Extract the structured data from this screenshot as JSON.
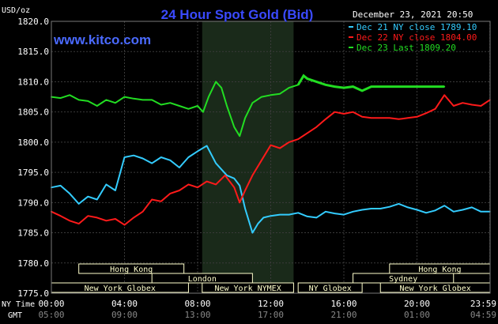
{
  "header": {
    "title": "24 Hour Spot Gold (Bid)",
    "date_time": "December 23, 2021 20:50",
    "unit_label": "USD/oz",
    "website": "www.kitco.com"
  },
  "colors": {
    "background": "#000000",
    "plot_background": "#000000",
    "session_shade": "#1a2a1a",
    "grid": "#3a3a3a",
    "axis_text": "#ffffff",
    "title": "#3a4aff",
    "website": "#4a6aff",
    "dec21": "#33ccff",
    "dec22": "#ff1a1a",
    "dec23": "#22dd22",
    "session_box_fill": "#000000",
    "session_box_border": "#ffffcc",
    "session_text": "#ffffcc"
  },
  "legend": [
    {
      "key": "dec21",
      "label": "Dec 21 NY close 1789.10"
    },
    {
      "key": "dec22",
      "label": "Dec 22 NY close 1804.00"
    },
    {
      "key": "dec23",
      "label": "Dec 23 Last 1809.20"
    }
  ],
  "axis_labels": {
    "ny_time": "NY Time",
    "gmt": "GMT"
  },
  "sessions": {
    "row1": [
      {
        "label": "Hong Kong",
        "start": 1.5,
        "end": 7.25
      },
      {
        "label": "Hong Kong",
        "start": 18.5,
        "end": 24
      }
    ],
    "row2": [
      {
        "label": "London",
        "start": 5.5,
        "end": 11.0
      },
      {
        "label": "Sydney",
        "start": 16.5,
        "end": 22.0
      }
    ],
    "row3": [
      {
        "label": "New York Globex",
        "start": 0,
        "end": 7.5
      },
      {
        "label": "New York NYMEX",
        "start": 8.25,
        "end": 13.25
      },
      {
        "label": "NY Globex",
        "start": 13.5,
        "end": 17.0
      },
      {
        "label": "New York Globex",
        "start": 18.0,
        "end": 24
      }
    ]
  },
  "chart_data": {
    "type": "line",
    "title": "24 Hour Spot Gold (Bid)",
    "ylabel": "USD/oz",
    "xlim": [
      0,
      24
    ],
    "ylim": [
      1775,
      1820
    ],
    "yticks": [
      1775.0,
      1780.0,
      1785.0,
      1790.0,
      1795.0,
      1800.0,
      1805.0,
      1810.0,
      1815.0,
      1820.0
    ],
    "xticks_ny": [
      "00:00",
      "04:00",
      "08:00",
      "12:00",
      "16:00",
      "20:00",
      "23:59"
    ],
    "xticks_gmt": [
      "05:00",
      "09:00",
      "13:00",
      "17:00",
      "21:00",
      "01:00",
      "04:59"
    ],
    "shaded_region": [
      8.25,
      13.25
    ],
    "grid": true,
    "legend_position": "top-right",
    "series": [
      {
        "name": "Dec 21 NY close 1789.10",
        "key": "dec21",
        "x": [
          0,
          0.5,
          1.0,
          1.5,
          2.0,
          2.5,
          3.0,
          3.5,
          4.0,
          4.5,
          5.0,
          5.5,
          6.0,
          6.5,
          7.0,
          7.5,
          8.0,
          8.5,
          9.0,
          9.3,
          9.6,
          10.0,
          10.3,
          10.6,
          11.0,
          11.3,
          11.6,
          12.0,
          12.5,
          13.0,
          13.5,
          14.0,
          14.5,
          15.0,
          15.5,
          16.0,
          16.5,
          17.0,
          17.5,
          18.0,
          18.5,
          19.0,
          19.5,
          20.0,
          20.5,
          21.0,
          21.5,
          22.0,
          22.5,
          23.0,
          23.5,
          23.99
        ],
        "y": [
          1792.5,
          1792.8,
          1791.5,
          1789.8,
          1791.0,
          1790.5,
          1793.0,
          1792.0,
          1797.5,
          1797.8,
          1797.3,
          1796.5,
          1797.5,
          1797.0,
          1795.8,
          1797.5,
          1798.5,
          1799.4,
          1796.5,
          1795.5,
          1794.5,
          1794.0,
          1792.8,
          1789.0,
          1785.0,
          1786.5,
          1787.5,
          1787.8,
          1788.0,
          1788.0,
          1788.3,
          1787.7,
          1787.5,
          1788.5,
          1788.2,
          1788.0,
          1788.5,
          1788.8,
          1789.0,
          1789.0,
          1789.3,
          1789.8,
          1789.2,
          1788.8,
          1788.3,
          1788.7,
          1789.5,
          1788.5,
          1788.8,
          1789.2,
          1788.5,
          1788.5
        ]
      },
      {
        "name": "Dec 22 NY close 1804.00",
        "key": "dec22",
        "x": [
          0,
          0.5,
          1.0,
          1.5,
          2.0,
          2.5,
          3.0,
          3.5,
          4.0,
          4.5,
          5.0,
          5.5,
          6.0,
          6.5,
          7.0,
          7.5,
          8.0,
          8.5,
          9.0,
          9.5,
          10.0,
          10.3,
          10.6,
          11.0,
          11.5,
          12.0,
          12.5,
          13.0,
          13.5,
          14.0,
          14.5,
          15.0,
          15.5,
          16.0,
          16.5,
          17.0,
          17.5,
          18.0,
          18.5,
          19.0,
          19.5,
          20.0,
          20.5,
          21.0,
          21.5,
          22.0,
          22.5,
          23.0,
          23.5,
          23.99
        ],
        "y": [
          1788.5,
          1787.8,
          1787.0,
          1786.5,
          1787.8,
          1787.5,
          1787.0,
          1787.3,
          1786.3,
          1787.5,
          1788.5,
          1790.5,
          1790.2,
          1791.5,
          1792.0,
          1793.0,
          1792.5,
          1793.5,
          1793.0,
          1794.5,
          1792.5,
          1790.0,
          1792.0,
          1794.5,
          1797.0,
          1799.5,
          1799.0,
          1800.0,
          1800.5,
          1801.5,
          1802.5,
          1803.8,
          1805.0,
          1804.7,
          1805.0,
          1804.2,
          1804.0,
          1804.0,
          1804.0,
          1803.8,
          1804.0,
          1804.2,
          1804.8,
          1805.5,
          1807.8,
          1806.0,
          1806.5,
          1806.2,
          1806.0,
          1807.0
        ]
      },
      {
        "name": "Dec 23 Last 1809.20",
        "key": "dec23",
        "x": [
          0,
          0.5,
          1.0,
          1.5,
          2.0,
          2.5,
          3.0,
          3.5,
          4.0,
          4.5,
          5.0,
          5.5,
          6.0,
          6.5,
          7.0,
          7.5,
          8.0,
          8.3,
          8.6,
          9.0,
          9.3,
          9.6,
          10.0,
          10.3,
          10.6,
          11.0,
          11.5,
          12.0,
          12.5,
          13.0,
          13.5,
          13.8,
          14.0,
          14.5,
          15.0,
          15.5,
          16.0,
          16.5,
          17.0,
          17.5,
          18.0,
          19.0,
          20.0,
          20.5,
          21.0,
          21.5
        ],
        "y": [
          1807.5,
          1807.3,
          1807.8,
          1807.0,
          1806.8,
          1806.0,
          1807.0,
          1806.5,
          1807.5,
          1807.2,
          1807.0,
          1807.0,
          1806.2,
          1806.5,
          1806.0,
          1805.5,
          1806.0,
          1805.0,
          1807.5,
          1810.0,
          1809.0,
          1806.0,
          1802.5,
          1801.0,
          1804.0,
          1806.5,
          1807.5,
          1807.8,
          1808.0,
          1809.0,
          1809.5,
          1811.0,
          1810.5,
          1810.0,
          1809.5,
          1809.2,
          1809.0,
          1809.2,
          1808.5,
          1809.2,
          1809.2,
          1809.2,
          1809.2,
          1809.2,
          1809.2,
          1809.2
        ]
      }
    ]
  }
}
